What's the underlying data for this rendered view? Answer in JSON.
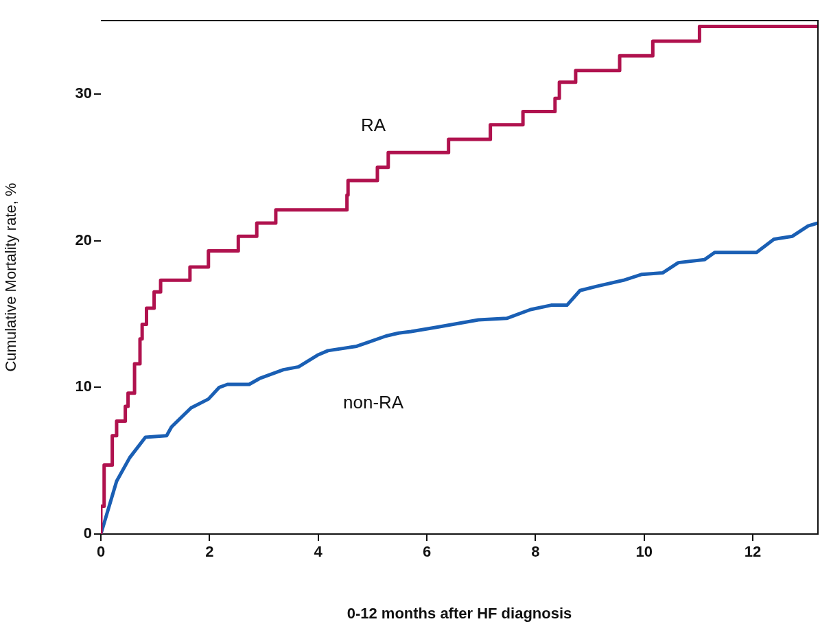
{
  "chart_data": {
    "type": "step",
    "xlabel": "0-12 months after HF diagnosis",
    "ylabel": "Cumulative Mortality rate, %",
    "xlim": [
      0,
      13.2
    ],
    "ylim": [
      0,
      35
    ],
    "xticks": [
      0,
      2,
      4,
      6,
      8,
      10,
      12
    ],
    "yticks": [
      0,
      10,
      20,
      30
    ],
    "grid": false,
    "legend": false,
    "marker": "none",
    "line_style": "solid",
    "series": [
      {
        "name": "RA",
        "color": "#b0124e",
        "x": [
          0,
          0.06,
          0.21,
          0.29,
          0.45,
          0.5,
          0.62,
          0.72,
          0.76,
          0.84,
          0.98,
          1.1,
          1.64,
          1.98,
          2.53,
          2.87,
          3.22,
          4.53,
          4.55,
          5.09,
          5.29,
          6.4,
          7.17,
          7.77,
          8.36,
          8.44,
          8.74,
          9.55,
          10.16,
          11.02,
          11.36,
          13.2
        ],
        "values": [
          0,
          1.9,
          4.7,
          6.7,
          7.7,
          8.7,
          9.6,
          11.6,
          13.3,
          14.3,
          15.4,
          16.5,
          17.3,
          18.2,
          19.3,
          20.3,
          21.2,
          22.1,
          23.1,
          24.1,
          25.0,
          26.0,
          26.9,
          27.9,
          28.8,
          29.7,
          30.8,
          31.6,
          32.6,
          33.6,
          34.6,
          34.6
        ]
      },
      {
        "name": "non-RA",
        "type": "line",
        "color": "#1a5fb4",
        "x": [
          0,
          0.29,
          0.53,
          0.82,
          1.21,
          1.3,
          1.66,
          1.98,
          2.18,
          2.33,
          2.73,
          2.92,
          3.36,
          3.64,
          3.99,
          4.18,
          4.71,
          4.94,
          5.25,
          5.48,
          5.71,
          6.18,
          6.95,
          7.47,
          7.91,
          8.29,
          8.58,
          8.82,
          9.14,
          9.62,
          9.96,
          10.34,
          10.63,
          11.11,
          11.3,
          12.07,
          12.39,
          12.73,
          13.02,
          13.2
        ],
        "values": [
          0,
          3.6,
          5.2,
          6.6,
          6.7,
          7.3,
          8.6,
          9.2,
          10.0,
          10.2,
          10.2,
          10.6,
          11.2,
          11.4,
          12.2,
          12.5,
          12.8,
          13.1,
          13.5,
          13.7,
          13.8,
          14.1,
          14.6,
          14.7,
          15.3,
          15.6,
          15.6,
          16.6,
          16.9,
          17.3,
          17.7,
          17.8,
          18.5,
          18.7,
          19.2,
          19.2,
          20.1,
          20.3,
          21.0,
          21.2
        ]
      }
    ]
  }
}
